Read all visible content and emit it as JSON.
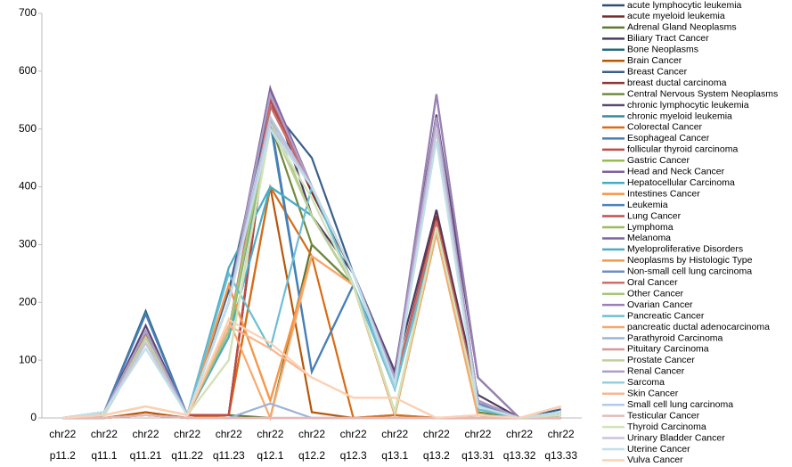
{
  "chart_data": {
    "type": "line",
    "legend": "right",
    "grid": false,
    "categories": [
      "chr22 p11.2",
      "chr22 q11.1",
      "chr22 q11.21",
      "chr22 q11.22",
      "chr22 q11.23",
      "chr22 q12.1",
      "chr22 q12.2",
      "chr22 q12.3",
      "chr22 q13.1",
      "chr22 q13.2",
      "chr22 q13.31",
      "chr22 q13.32",
      "chr22 q13.33"
    ],
    "ylim": [
      0,
      700
    ],
    "yticks": [
      0,
      100,
      200,
      300,
      400,
      500,
      600,
      700
    ],
    "series": [
      {
        "name": "acute lymphocytic leukemia",
        "color": "#2C4D75",
        "values": [
          0,
          5,
          140,
          5,
          5,
          540,
          400,
          250,
          70,
          520,
          30,
          0,
          10
        ]
      },
      {
        "name": "acute myeloid leukemia",
        "color": "#772C2A",
        "values": [
          0,
          5,
          145,
          5,
          5,
          550,
          390,
          250,
          60,
          500,
          30,
          0,
          10
        ]
      },
      {
        "name": "Adrenal Gland Neoplasms",
        "color": "#5F7530",
        "values": [
          0,
          0,
          5,
          0,
          5,
          0,
          300,
          230,
          5,
          320,
          5,
          0,
          5
        ]
      },
      {
        "name": "Biliary Tract Cancer",
        "color": "#4D3B62",
        "values": [
          0,
          10,
          150,
          5,
          200,
          570,
          350,
          250,
          80,
          360,
          40,
          0,
          10
        ]
      },
      {
        "name": "Bone Neoplasms",
        "color": "#276A7C",
        "values": [
          0,
          10,
          185,
          5,
          200,
          510,
          400,
          250,
          80,
          500,
          30,
          0,
          10
        ]
      },
      {
        "name": "Brain Cancer",
        "color": "#B65708",
        "values": [
          0,
          0,
          10,
          0,
          5,
          400,
          10,
          0,
          5,
          0,
          0,
          0,
          0
        ]
      },
      {
        "name": "Breast Cancer",
        "color": "#3A5F8B",
        "values": [
          0,
          10,
          180,
          5,
          220,
          540,
          450,
          250,
          70,
          520,
          25,
          0,
          15
        ]
      },
      {
        "name": "breast ductal carcinoma",
        "color": "#8C3836",
        "values": [
          0,
          5,
          140,
          5,
          5,
          540,
          400,
          250,
          60,
          350,
          30,
          0,
          10
        ]
      },
      {
        "name": "Central Nervous System Neoplasms",
        "color": "#71893F",
        "values": [
          0,
          5,
          130,
          5,
          150,
          510,
          300,
          230,
          5,
          320,
          10,
          0,
          5
        ]
      },
      {
        "name": "chronic lymphocytic leukemia",
        "color": "#5C4776",
        "values": [
          0,
          10,
          160,
          5,
          200,
          560,
          400,
          250,
          80,
          525,
          70,
          0,
          10
        ]
      },
      {
        "name": "chronic myeloid leukemia",
        "color": "#358BA2",
        "values": [
          0,
          5,
          130,
          5,
          140,
          510,
          80,
          230,
          50,
          320,
          20,
          0,
          5
        ]
      },
      {
        "name": "Colorectal Cancer",
        "color": "#D86B13",
        "values": [
          0,
          0,
          5,
          0,
          5,
          400,
          280,
          0,
          5,
          0,
          0,
          0,
          0
        ]
      },
      {
        "name": "Esophageal Cancer",
        "color": "#4A7EBB",
        "values": [
          0,
          10,
          180,
          5,
          200,
          520,
          80,
          230,
          60,
          500,
          25,
          0,
          10
        ]
      },
      {
        "name": "follicular thyroid carcinoma",
        "color": "#BE4B48",
        "values": [
          0,
          5,
          140,
          5,
          5,
          550,
          400,
          250,
          60,
          340,
          30,
          0,
          10
        ]
      },
      {
        "name": "Gastric Cancer",
        "color": "#98B954",
        "values": [
          0,
          5,
          140,
          5,
          140,
          520,
          350,
          230,
          10,
          320,
          20,
          0,
          5
        ]
      },
      {
        "name": "Head and Neck Cancer",
        "color": "#7D60A0",
        "values": [
          0,
          10,
          150,
          5,
          200,
          560,
          400,
          250,
          70,
          520,
          30,
          0,
          10
        ]
      },
      {
        "name": "Hepatocellular Carcinoma",
        "color": "#46AAC5",
        "values": [
          0,
          10,
          150,
          5,
          260,
          400,
          350,
          230,
          50,
          330,
          20,
          0,
          5
        ]
      },
      {
        "name": "Intestines Cancer",
        "color": "#F69240",
        "values": [
          0,
          0,
          5,
          0,
          230,
          30,
          280,
          230,
          5,
          320,
          5,
          0,
          20
        ]
      },
      {
        "name": "Leukemia",
        "color": "#4F81BD",
        "values": [
          0,
          10,
          150,
          5,
          200,
          520,
          400,
          250,
          70,
          500,
          25,
          0,
          10
        ]
      },
      {
        "name": "Lung Cancer",
        "color": "#C0504D",
        "values": [
          0,
          5,
          145,
          5,
          150,
          540,
          400,
          250,
          60,
          340,
          30,
          0,
          10
        ]
      },
      {
        "name": "Lymphoma",
        "color": "#9BBB59",
        "values": [
          0,
          5,
          140,
          5,
          150,
          520,
          350,
          230,
          10,
          330,
          20,
          0,
          5
        ]
      },
      {
        "name": "Melanoma",
        "color": "#8064A2",
        "values": [
          0,
          10,
          150,
          5,
          200,
          570,
          400,
          250,
          70,
          560,
          70,
          0,
          10
        ]
      },
      {
        "name": "Myeloproliferative Disorders",
        "color": "#4BACC6",
        "values": [
          0,
          5,
          130,
          5,
          140,
          400,
          350,
          230,
          50,
          320,
          15,
          0,
          5
        ]
      },
      {
        "name": "Neoplasms by Histologic Type",
        "color": "#F79646",
        "values": [
          0,
          5,
          20,
          5,
          230,
          30,
          280,
          230,
          5,
          330,
          5,
          0,
          20
        ]
      },
      {
        "name": "Non-small cell lung carcinoma",
        "color": "#6D8FC4",
        "values": [
          0,
          10,
          150,
          5,
          200,
          520,
          400,
          250,
          70,
          500,
          25,
          0,
          10
        ]
      },
      {
        "name": "Oral Cancer",
        "color": "#CD6D6B",
        "values": [
          0,
          5,
          140,
          5,
          150,
          540,
          400,
          250,
          60,
          340,
          30,
          0,
          10
        ]
      },
      {
        "name": "Other Cancer",
        "color": "#A9C47B",
        "values": [
          0,
          5,
          140,
          5,
          150,
          520,
          350,
          230,
          10,
          330,
          20,
          0,
          5
        ]
      },
      {
        "name": "Ovarian Cancer",
        "color": "#9882B3",
        "values": [
          0,
          10,
          150,
          5,
          200,
          560,
          400,
          250,
          70,
          560,
          70,
          0,
          10
        ]
      },
      {
        "name": "Pancreatic Cancer",
        "color": "#6CBED4",
        "values": [
          0,
          5,
          130,
          5,
          250,
          120,
          400,
          230,
          50,
          320,
          15,
          0,
          5
        ]
      },
      {
        "name": "pancreatic ductal adenocarcinoma",
        "color": "#F9A86B",
        "values": [
          0,
          0,
          5,
          0,
          170,
          0,
          280,
          230,
          5,
          320,
          5,
          0,
          20
        ]
      },
      {
        "name": "Parathyroid Carcinoma",
        "color": "#9AB4D8",
        "values": [
          0,
          0,
          5,
          0,
          0,
          25,
          0,
          0,
          0,
          0,
          0,
          0,
          0
        ]
      },
      {
        "name": "Pituitary Carcinoma",
        "color": "#D69896",
        "values": [
          0,
          0,
          5,
          0,
          0,
          0,
          0,
          0,
          0,
          0,
          0,
          0,
          0
        ]
      },
      {
        "name": "Prostate Cancer",
        "color": "#BED196",
        "values": [
          0,
          5,
          140,
          5,
          100,
          510,
          350,
          230,
          10,
          330,
          20,
          0,
          5
        ]
      },
      {
        "name": "Renal Cancer",
        "color": "#AE9EC5",
        "values": [
          0,
          10,
          150,
          5,
          200,
          560,
          400,
          250,
          70,
          520,
          30,
          0,
          10
        ]
      },
      {
        "name": "Sarcoma",
        "color": "#94CFDF",
        "values": [
          0,
          10,
          130,
          5,
          200,
          510,
          400,
          250,
          50,
          500,
          20,
          0,
          10
        ]
      },
      {
        "name": "Skin Cancer",
        "color": "#FAB68C",
        "values": [
          0,
          5,
          20,
          5,
          160,
          120,
          70,
          35,
          35,
          0,
          5,
          0,
          20
        ]
      },
      {
        "name": "Small cell lung carcinoma",
        "color": "#B3C9E6",
        "values": [
          0,
          10,
          130,
          5,
          200,
          520,
          400,
          250,
          60,
          500,
          20,
          0,
          10
        ]
      },
      {
        "name": "Testicular Cancer",
        "color": "#E4B9B8",
        "values": [
          0,
          0,
          5,
          0,
          0,
          0,
          0,
          0,
          0,
          0,
          0,
          0,
          0
        ]
      },
      {
        "name": "Thyroid Carcinoma",
        "color": "#D3E2BA",
        "values": [
          0,
          5,
          130,
          5,
          100,
          500,
          380,
          230,
          10,
          330,
          20,
          0,
          5
        ]
      },
      {
        "name": "Urinary Bladder Cancer",
        "color": "#CCC2DB",
        "values": [
          0,
          10,
          130,
          5,
          200,
          510,
          400,
          250,
          60,
          500,
          20,
          0,
          10
        ]
      },
      {
        "name": "Uterine Cancer",
        "color": "#BFE0EA",
        "values": [
          0,
          10,
          120,
          5,
          200,
          500,
          400,
          250,
          60,
          480,
          20,
          0,
          10
        ]
      },
      {
        "name": "Vulva Cancer",
        "color": "#FBD1B5",
        "values": [
          0,
          5,
          20,
          5,
          170,
          130,
          70,
          35,
          35,
          0,
          5,
          0,
          20
        ]
      }
    ]
  }
}
